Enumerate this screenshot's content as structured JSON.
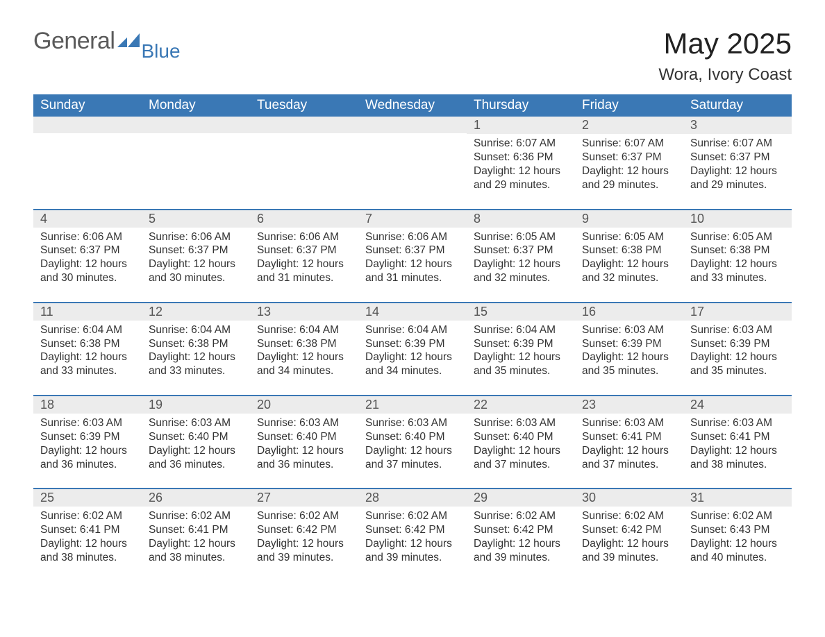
{
  "logo": {
    "main": "General",
    "sub": "Blue"
  },
  "title": "May 2025",
  "subtitle": "Wora, Ivory Coast",
  "colors": {
    "header_bg": "#3a78b5",
    "header_text": "#ffffff",
    "daynum_bg": "#ececec",
    "row_border": "#3a78b5",
    "logo_gray": "#5a5a5a",
    "logo_blue": "#3a78b5"
  },
  "weekdays": [
    "Sunday",
    "Monday",
    "Tuesday",
    "Wednesday",
    "Thursday",
    "Friday",
    "Saturday"
  ],
  "weeks": [
    [
      {
        "day": "",
        "sunrise": "",
        "sunset": "",
        "daylight": ""
      },
      {
        "day": "",
        "sunrise": "",
        "sunset": "",
        "daylight": ""
      },
      {
        "day": "",
        "sunrise": "",
        "sunset": "",
        "daylight": ""
      },
      {
        "day": "",
        "sunrise": "",
        "sunset": "",
        "daylight": ""
      },
      {
        "day": "1",
        "sunrise": "Sunrise: 6:07 AM",
        "sunset": "Sunset: 6:36 PM",
        "daylight": "Daylight: 12 hours and 29 minutes."
      },
      {
        "day": "2",
        "sunrise": "Sunrise: 6:07 AM",
        "sunset": "Sunset: 6:37 PM",
        "daylight": "Daylight: 12 hours and 29 minutes."
      },
      {
        "day": "3",
        "sunrise": "Sunrise: 6:07 AM",
        "sunset": "Sunset: 6:37 PM",
        "daylight": "Daylight: 12 hours and 29 minutes."
      }
    ],
    [
      {
        "day": "4",
        "sunrise": "Sunrise: 6:06 AM",
        "sunset": "Sunset: 6:37 PM",
        "daylight": "Daylight: 12 hours and 30 minutes."
      },
      {
        "day": "5",
        "sunrise": "Sunrise: 6:06 AM",
        "sunset": "Sunset: 6:37 PM",
        "daylight": "Daylight: 12 hours and 30 minutes."
      },
      {
        "day": "6",
        "sunrise": "Sunrise: 6:06 AM",
        "sunset": "Sunset: 6:37 PM",
        "daylight": "Daylight: 12 hours and 31 minutes."
      },
      {
        "day": "7",
        "sunrise": "Sunrise: 6:06 AM",
        "sunset": "Sunset: 6:37 PM",
        "daylight": "Daylight: 12 hours and 31 minutes."
      },
      {
        "day": "8",
        "sunrise": "Sunrise: 6:05 AM",
        "sunset": "Sunset: 6:37 PM",
        "daylight": "Daylight: 12 hours and 32 minutes."
      },
      {
        "day": "9",
        "sunrise": "Sunrise: 6:05 AM",
        "sunset": "Sunset: 6:38 PM",
        "daylight": "Daylight: 12 hours and 32 minutes."
      },
      {
        "day": "10",
        "sunrise": "Sunrise: 6:05 AM",
        "sunset": "Sunset: 6:38 PM",
        "daylight": "Daylight: 12 hours and 33 minutes."
      }
    ],
    [
      {
        "day": "11",
        "sunrise": "Sunrise: 6:04 AM",
        "sunset": "Sunset: 6:38 PM",
        "daylight": "Daylight: 12 hours and 33 minutes."
      },
      {
        "day": "12",
        "sunrise": "Sunrise: 6:04 AM",
        "sunset": "Sunset: 6:38 PM",
        "daylight": "Daylight: 12 hours and 33 minutes."
      },
      {
        "day": "13",
        "sunrise": "Sunrise: 6:04 AM",
        "sunset": "Sunset: 6:38 PM",
        "daylight": "Daylight: 12 hours and 34 minutes."
      },
      {
        "day": "14",
        "sunrise": "Sunrise: 6:04 AM",
        "sunset": "Sunset: 6:39 PM",
        "daylight": "Daylight: 12 hours and 34 minutes."
      },
      {
        "day": "15",
        "sunrise": "Sunrise: 6:04 AM",
        "sunset": "Sunset: 6:39 PM",
        "daylight": "Daylight: 12 hours and 35 minutes."
      },
      {
        "day": "16",
        "sunrise": "Sunrise: 6:03 AM",
        "sunset": "Sunset: 6:39 PM",
        "daylight": "Daylight: 12 hours and 35 minutes."
      },
      {
        "day": "17",
        "sunrise": "Sunrise: 6:03 AM",
        "sunset": "Sunset: 6:39 PM",
        "daylight": "Daylight: 12 hours and 35 minutes."
      }
    ],
    [
      {
        "day": "18",
        "sunrise": "Sunrise: 6:03 AM",
        "sunset": "Sunset: 6:39 PM",
        "daylight": "Daylight: 12 hours and 36 minutes."
      },
      {
        "day": "19",
        "sunrise": "Sunrise: 6:03 AM",
        "sunset": "Sunset: 6:40 PM",
        "daylight": "Daylight: 12 hours and 36 minutes."
      },
      {
        "day": "20",
        "sunrise": "Sunrise: 6:03 AM",
        "sunset": "Sunset: 6:40 PM",
        "daylight": "Daylight: 12 hours and 36 minutes."
      },
      {
        "day": "21",
        "sunrise": "Sunrise: 6:03 AM",
        "sunset": "Sunset: 6:40 PM",
        "daylight": "Daylight: 12 hours and 37 minutes."
      },
      {
        "day": "22",
        "sunrise": "Sunrise: 6:03 AM",
        "sunset": "Sunset: 6:40 PM",
        "daylight": "Daylight: 12 hours and 37 minutes."
      },
      {
        "day": "23",
        "sunrise": "Sunrise: 6:03 AM",
        "sunset": "Sunset: 6:41 PM",
        "daylight": "Daylight: 12 hours and 37 minutes."
      },
      {
        "day": "24",
        "sunrise": "Sunrise: 6:03 AM",
        "sunset": "Sunset: 6:41 PM",
        "daylight": "Daylight: 12 hours and 38 minutes."
      }
    ],
    [
      {
        "day": "25",
        "sunrise": "Sunrise: 6:02 AM",
        "sunset": "Sunset: 6:41 PM",
        "daylight": "Daylight: 12 hours and 38 minutes."
      },
      {
        "day": "26",
        "sunrise": "Sunrise: 6:02 AM",
        "sunset": "Sunset: 6:41 PM",
        "daylight": "Daylight: 12 hours and 38 minutes."
      },
      {
        "day": "27",
        "sunrise": "Sunrise: 6:02 AM",
        "sunset": "Sunset: 6:42 PM",
        "daylight": "Daylight: 12 hours and 39 minutes."
      },
      {
        "day": "28",
        "sunrise": "Sunrise: 6:02 AM",
        "sunset": "Sunset: 6:42 PM",
        "daylight": "Daylight: 12 hours and 39 minutes."
      },
      {
        "day": "29",
        "sunrise": "Sunrise: 6:02 AM",
        "sunset": "Sunset: 6:42 PM",
        "daylight": "Daylight: 12 hours and 39 minutes."
      },
      {
        "day": "30",
        "sunrise": "Sunrise: 6:02 AM",
        "sunset": "Sunset: 6:42 PM",
        "daylight": "Daylight: 12 hours and 39 minutes."
      },
      {
        "day": "31",
        "sunrise": "Sunrise: 6:02 AM",
        "sunset": "Sunset: 6:43 PM",
        "daylight": "Daylight: 12 hours and 40 minutes."
      }
    ]
  ]
}
